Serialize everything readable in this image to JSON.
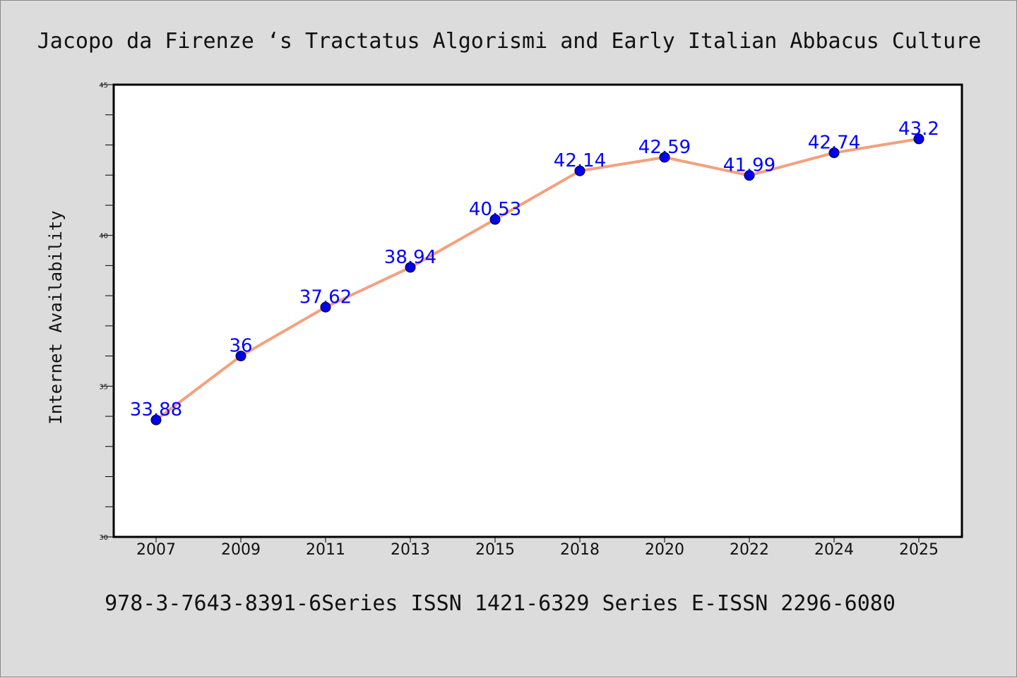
{
  "title": "Jacopo da Firenze ‘s Tractatus Algorismi and Early Italian Abbacus Culture",
  "footer": "978-3-7643-8391-6Series ISSN 1421-6329 Series E-ISSN 2296-6080",
  "colors": {
    "background": "#dcdcdc",
    "plot_background": "#ffffff",
    "line": "#f4a07f",
    "marker": "#0000ee",
    "data_label": "#0000ff",
    "axis": "#000000"
  },
  "chart_data": {
    "type": "line",
    "ylabel": "Internet Availability",
    "xlabel": "",
    "categories": [
      "2007",
      "2009",
      "2011",
      "2013",
      "2015",
      "2018",
      "2020",
      "2022",
      "2024",
      "2025"
    ],
    "series": [
      {
        "values": [
          33.88,
          36,
          37.62,
          38.94,
          40.53,
          42.14,
          42.59,
          41.99,
          42.74,
          43.2
        ]
      }
    ],
    "data_labels": [
      "33.88",
      "36",
      "37.62",
      "38.94",
      "40.53",
      "42.14",
      "42.59",
      "41.99",
      "42.74",
      "43.2"
    ],
    "ylim": [
      30,
      45
    ],
    "yticks": [
      "30",
      "35",
      "40",
      "45"
    ],
    "grid": false,
    "legend": "none"
  }
}
